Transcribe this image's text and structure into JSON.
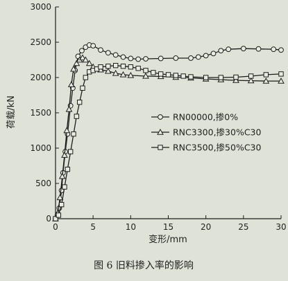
{
  "chart_data": {
    "type": "line",
    "xlabel": "变形/mm",
    "ylabel": "荷载/kN",
    "caption": "图 6    旧料掺入率的影响",
    "xlim": [
      0,
      30
    ],
    "ylim": [
      0,
      3000
    ],
    "xticks": [
      0,
      5,
      10,
      15,
      20,
      25,
      30
    ],
    "yticks": [
      0,
      500,
      1000,
      1500,
      2000,
      2500,
      3000
    ],
    "grid": false,
    "legend_position": "center-right",
    "series": [
      {
        "name": "RN00000,掺0%",
        "marker": "circle",
        "points": [
          [
            0,
            0
          ],
          [
            0.3,
            60
          ],
          [
            0.5,
            150
          ],
          [
            0.8,
            400
          ],
          [
            1.0,
            650
          ],
          [
            1.3,
            950
          ],
          [
            1.6,
            1200
          ],
          [
            2.0,
            1600
          ],
          [
            2.3,
            1850
          ],
          [
            2.6,
            2100
          ],
          [
            3.0,
            2300
          ],
          [
            3.5,
            2380
          ],
          [
            4.0,
            2430
          ],
          [
            4.5,
            2460
          ],
          [
            5.0,
            2450
          ],
          [
            6.0,
            2390
          ],
          [
            7.0,
            2350
          ],
          [
            8.0,
            2320
          ],
          [
            9.0,
            2290
          ],
          [
            10.0,
            2270
          ],
          [
            11.0,
            2260
          ],
          [
            12.0,
            2265
          ],
          [
            14.0,
            2270
          ],
          [
            16.0,
            2275
          ],
          [
            18.0,
            2275
          ],
          [
            19.0,
            2290
          ],
          [
            20.0,
            2310
          ],
          [
            21.0,
            2340
          ],
          [
            22.0,
            2380
          ],
          [
            23.0,
            2400
          ],
          [
            25.0,
            2410
          ],
          [
            27.0,
            2405
          ],
          [
            29.0,
            2400
          ],
          [
            30.0,
            2390
          ]
        ]
      },
      {
        "name": "RNC3300,掺30%C30",
        "marker": "triangle",
        "points": [
          [
            0,
            0
          ],
          [
            0.3,
            80
          ],
          [
            0.6,
            300
          ],
          [
            0.9,
            600
          ],
          [
            1.2,
            900
          ],
          [
            1.5,
            1250
          ],
          [
            1.8,
            1550
          ],
          [
            2.1,
            1900
          ],
          [
            2.4,
            2120
          ],
          [
            2.8,
            2200
          ],
          [
            3.2,
            2250
          ],
          [
            3.6,
            2280
          ],
          [
            4.0,
            2250
          ],
          [
            4.5,
            2200
          ],
          [
            5.0,
            2150
          ],
          [
            6.0,
            2110
          ],
          [
            7.0,
            2090
          ],
          [
            8.0,
            2060
          ],
          [
            9.0,
            2040
          ],
          [
            10.0,
            2030
          ],
          [
            12.0,
            2020
          ],
          [
            14.0,
            2015
          ],
          [
            16.0,
            2005
          ],
          [
            18.0,
            1995
          ],
          [
            20.0,
            1980
          ],
          [
            22.0,
            1970
          ],
          [
            24.0,
            1960
          ],
          [
            26.0,
            1955
          ],
          [
            28.0,
            1950
          ],
          [
            30.0,
            1950
          ]
        ]
      },
      {
        "name": "RNC3500,掺50%C30",
        "marker": "square",
        "points": [
          [
            0,
            0
          ],
          [
            0.4,
            50
          ],
          [
            0.8,
            200
          ],
          [
            1.2,
            450
          ],
          [
            1.6,
            700
          ],
          [
            2.0,
            950
          ],
          [
            2.4,
            1200
          ],
          [
            2.8,
            1450
          ],
          [
            3.2,
            1650
          ],
          [
            3.6,
            1850
          ],
          [
            4.0,
            2000
          ],
          [
            4.5,
            2080
          ],
          [
            5.0,
            2100
          ],
          [
            5.5,
            2120
          ],
          [
            6.0,
            2150
          ],
          [
            7.0,
            2160
          ],
          [
            8.0,
            2170
          ],
          [
            9.0,
            2160
          ],
          [
            10.0,
            2150
          ],
          [
            11.0,
            2130
          ],
          [
            12.0,
            2100
          ],
          [
            13.0,
            2070
          ],
          [
            14.0,
            2050
          ],
          [
            15.0,
            2040
          ],
          [
            16.0,
            2030
          ],
          [
            17.0,
            2020
          ],
          [
            18.0,
            2010
          ],
          [
            20.0,
            2000
          ],
          [
            22.0,
            2000
          ],
          [
            24.0,
            2005
          ],
          [
            26.0,
            2020
          ],
          [
            28.0,
            2040
          ],
          [
            30.0,
            2050
          ]
        ]
      }
    ]
  },
  "colors": {
    "background": "#dfe2d6",
    "ink": "#1c1c1c",
    "marker_fill": "#e8ebe0"
  }
}
